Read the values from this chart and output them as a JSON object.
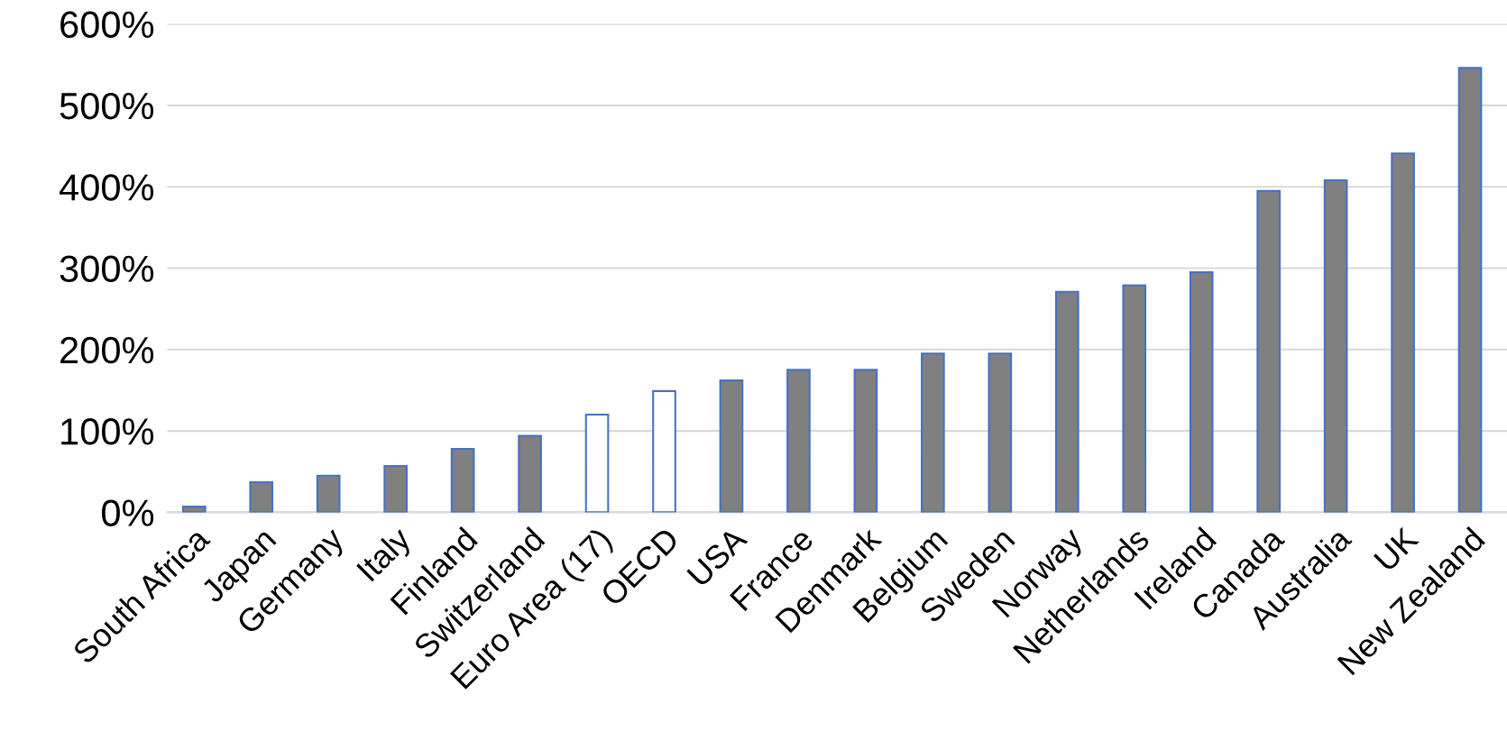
{
  "chart_data": {
    "type": "bar",
    "categories": [
      "South Africa",
      "Japan",
      "Germany",
      "Italy",
      "Finland",
      "Switzerland",
      "Euro Area (17)",
      "OECD",
      "USA",
      "France",
      "Denmark",
      "Belgium",
      "Sweden",
      "Norway",
      "Netherlands",
      "Ireland",
      "Canada",
      "Australia",
      "UK",
      "New Zealand"
    ],
    "values": [
      7,
      37,
      45,
      57,
      78,
      94,
      120,
      149,
      162,
      175,
      175,
      195,
      195,
      271,
      279,
      295,
      395,
      408,
      441,
      546
    ],
    "colors": [
      "#808080",
      "#808080",
      "#808080",
      "#808080",
      "#808080",
      "#808080",
      "#ffffff",
      "#ffffff",
      "#808080",
      "#808080",
      "#808080",
      "#808080",
      "#808080",
      "#808080",
      "#808080",
      "#808080",
      "#808080",
      "#808080",
      "#808080",
      "#808080"
    ],
    "ylim": [
      0,
      600
    ],
    "yticks": [
      {
        "value": 0,
        "label": "0%"
      },
      {
        "value": 100,
        "label": "100%"
      },
      {
        "value": 200,
        "label": "200%"
      },
      {
        "value": 300,
        "label": "300%"
      },
      {
        "value": 400,
        "label": "400%"
      },
      {
        "value": 500,
        "label": "500%"
      },
      {
        "value": 600,
        "label": "600%"
      }
    ],
    "grid": "y"
  }
}
